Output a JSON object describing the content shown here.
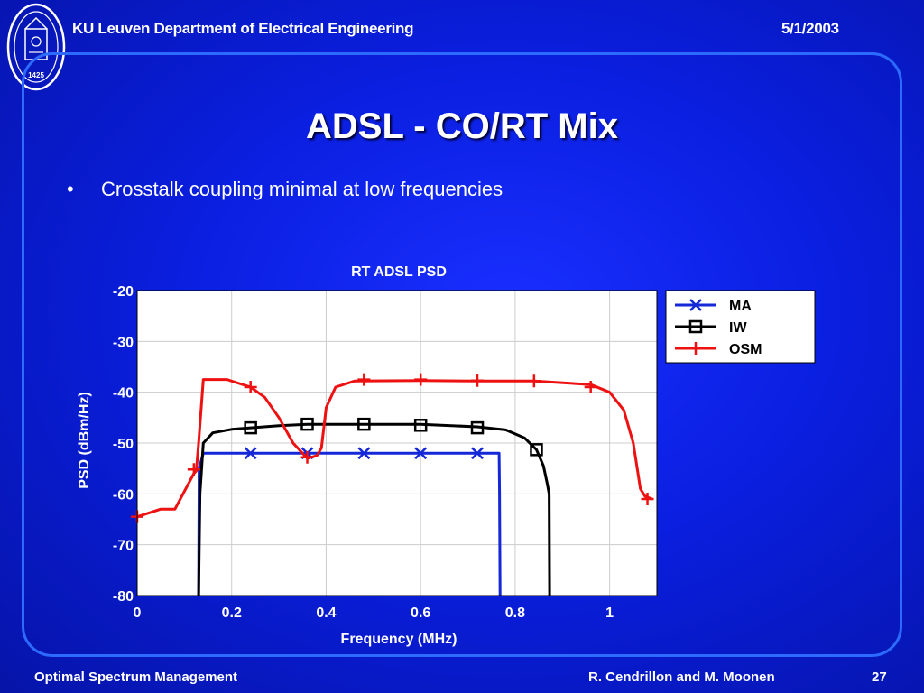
{
  "header": {
    "institution": "KU Leuven Department of Electrical Engineering",
    "date": "5/1/2003"
  },
  "seal": {
    "year_text": "1425"
  },
  "slide": {
    "title": "ADSL - CO/RT Mix",
    "bullets": [
      "Crosstalk coupling minimal at low frequencies"
    ]
  },
  "footer": {
    "left": "Optimal Spectrum Management",
    "authors": "R. Cendrillon and M. Moonen",
    "page": "27"
  },
  "colors": {
    "background": "#0a1fe0",
    "frame": "#2d6bff",
    "ma": "#1428d8",
    "iw": "#000000",
    "osm": "#ee1111"
  },
  "chart_data": {
    "type": "line",
    "title": "RT ADSL PSD",
    "xlabel": "Frequency (MHz)",
    "ylabel": "PSD (dBm/Hz)",
    "xlim": [
      0,
      1.1
    ],
    "ylim": [
      -80,
      -20
    ],
    "xticks": [
      0,
      0.2,
      0.4,
      0.6,
      0.8,
      1
    ],
    "yticks": [
      -80,
      -70,
      -60,
      -50,
      -40,
      -30,
      -20
    ],
    "xtick_labels": [
      "0",
      "0.2",
      "0.4",
      "0.6",
      "0.8",
      "1"
    ],
    "ytick_labels": [
      "-80",
      "-70",
      "-60",
      "-50",
      "-40",
      "-30",
      "-20"
    ],
    "grid": true,
    "legend_position": "top-right outside",
    "series": [
      {
        "name": "MA",
        "color": "#1428d8",
        "marker": "x",
        "x": [
          0.13,
          0.131,
          0.14,
          0.24,
          0.36,
          0.48,
          0.6,
          0.72,
          0.766,
          0.767,
          0.768
        ],
        "y": [
          -80,
          -55,
          -52,
          -52,
          -52,
          -52,
          -52,
          -52,
          -52,
          -60,
          -80
        ],
        "markers_x": [
          0.24,
          0.36,
          0.48,
          0.6,
          0.72
        ],
        "markers_y": [
          -52,
          -52,
          -52,
          -52,
          -52
        ]
      },
      {
        "name": "IW",
        "color": "#000000",
        "marker": "square",
        "x": [
          0.13,
          0.133,
          0.14,
          0.16,
          0.2,
          0.24,
          0.3,
          0.36,
          0.48,
          0.6,
          0.72,
          0.78,
          0.82,
          0.845,
          0.86,
          0.868,
          0.872,
          0.873
        ],
        "y": [
          -80,
          -60,
          -50,
          -48,
          -47.3,
          -47,
          -46.6,
          -46.3,
          -46.3,
          -46.3,
          -46.8,
          -47.4,
          -49,
          -51.3,
          -54.5,
          -58,
          -60,
          -80
        ],
        "markers_x": [
          0.24,
          0.36,
          0.48,
          0.6,
          0.72,
          0.845
        ],
        "markers_y": [
          -47,
          -46.3,
          -46.3,
          -46.5,
          -47,
          -51.3
        ]
      },
      {
        "name": "OSM",
        "color": "#ee1111",
        "marker": "plus",
        "x": [
          0,
          0.05,
          0.08,
          0.12,
          0.125,
          0.13,
          0.14,
          0.19,
          0.24,
          0.27,
          0.3,
          0.33,
          0.36,
          0.38,
          0.39,
          0.4,
          0.42,
          0.46,
          0.6,
          0.72,
          0.84,
          0.96,
          1.0,
          1.03,
          1.05,
          1.065,
          1.075,
          1.09
        ],
        "y": [
          -64.5,
          -63,
          -63,
          -56,
          -55.5,
          -50,
          -37.5,
          -37.5,
          -39,
          -41,
          -45,
          -50,
          -53,
          -52.5,
          -51,
          -43,
          -39,
          -37.8,
          -37.7,
          -37.8,
          -37.8,
          -38.5,
          -40,
          -43.5,
          -50,
          -59,
          -60.5,
          -61
        ],
        "markers_x": [
          0,
          0.12,
          0.24,
          0.36,
          0.48,
          0.6,
          0.72,
          0.84,
          0.96,
          1.08
        ],
        "markers_y": [
          -64.5,
          -55.2,
          -39,
          -52.8,
          -37.5,
          -37.5,
          -37.7,
          -37.8,
          -39,
          -61
        ]
      }
    ]
  }
}
